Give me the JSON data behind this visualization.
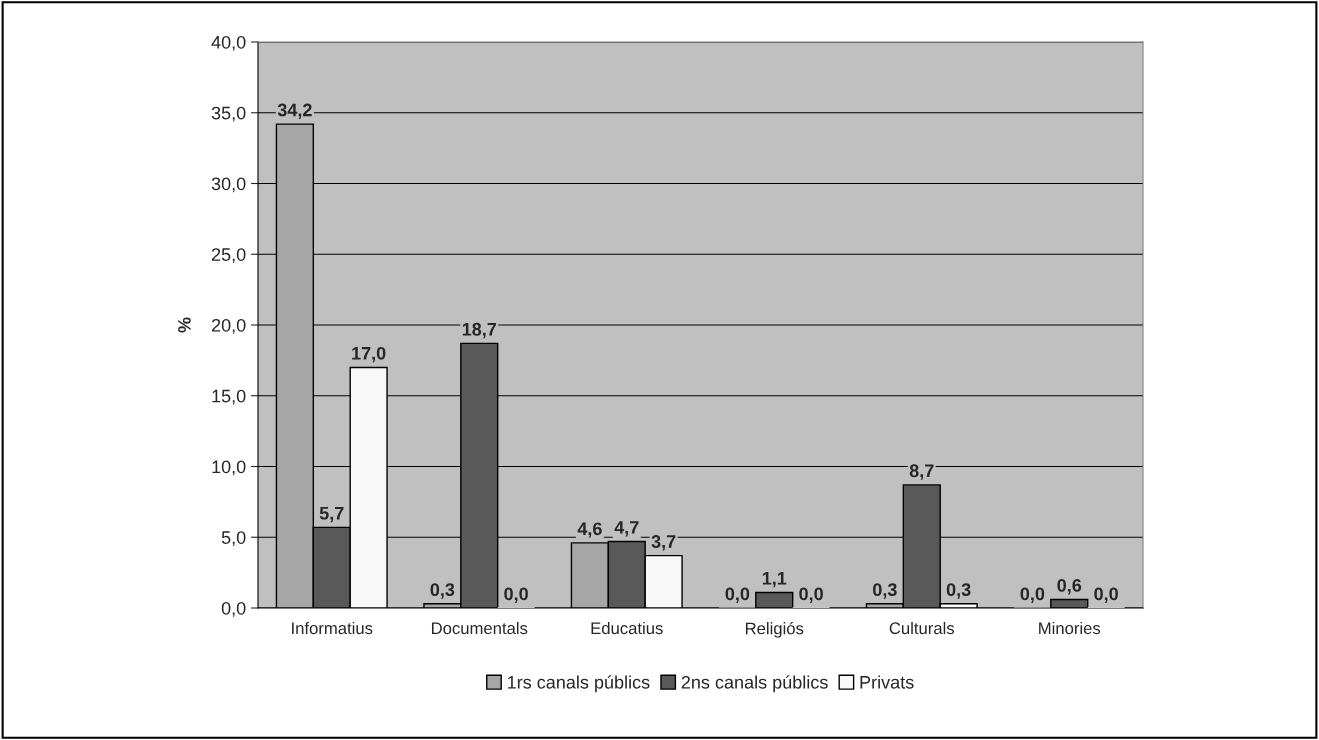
{
  "chart_data": {
    "type": "bar",
    "ylabel": "%",
    "categories": [
      "Informatius",
      "Documentals",
      "Educatius",
      "Religiós",
      "Culturals",
      "Minories"
    ],
    "series": [
      {
        "name": "1rs canals públics",
        "color": "#a6a6a6",
        "values": [
          34.2,
          0.3,
          4.6,
          0.0,
          0.3,
          0.0
        ],
        "value_labels": [
          "34,2",
          "0,3",
          "4,6",
          "0,0",
          "0,3",
          "0,0"
        ]
      },
      {
        "name": "2ns canals públics",
        "color": "#595959",
        "values": [
          5.7,
          18.7,
          4.7,
          1.1,
          8.7,
          0.6
        ],
        "value_labels": [
          "5,7",
          "18,7",
          "4,7",
          "1,1",
          "8,7",
          "0,6"
        ]
      },
      {
        "name": "Privats",
        "color": "#f8f8f8",
        "values": [
          17.0,
          0.0,
          3.7,
          0.0,
          0.3,
          0.0
        ],
        "value_labels": [
          "17,0",
          "0,0",
          "3,7",
          "0,0",
          "0,3",
          "0,0"
        ]
      }
    ],
    "ylim": [
      0,
      40
    ],
    "yticks": [
      {
        "value": 0,
        "label": "0,0"
      },
      {
        "value": 5,
        "label": "5,0"
      },
      {
        "value": 10,
        "label": "10,0"
      },
      {
        "value": 15,
        "label": "15,0"
      },
      {
        "value": 20,
        "label": "20,0"
      },
      {
        "value": 25,
        "label": "25,0"
      },
      {
        "value": 30,
        "label": "30,0"
      },
      {
        "value": 35,
        "label": "35,0"
      },
      {
        "value": 40,
        "label": "40,0"
      }
    ],
    "grid": "y",
    "legend": "bottom"
  }
}
